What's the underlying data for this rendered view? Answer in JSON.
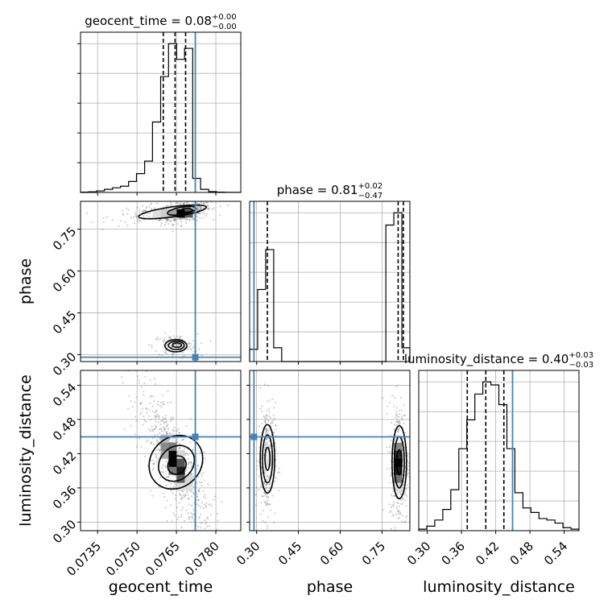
{
  "colors": {
    "truth": "#4682b4",
    "hist": "#000000",
    "grid": "#b0b0b0",
    "scatter": "#555555"
  },
  "chart_data": {
    "type": "corner",
    "parameters": [
      "geocent_time",
      "phase",
      "luminosity_distance"
    ],
    "titles": [
      {
        "name": "geocent_time",
        "prefix": "geocent_time = 0.08",
        "sup": "+0.00",
        "sub": "−0.00"
      },
      {
        "name": "phase",
        "prefix": "phase = 0.81",
        "sup": "+0.02",
        "sub": "−0.47"
      },
      {
        "name": "luminosity_distance",
        "prefix": "luminosity_distance = 0.40",
        "sup": "+0.03",
        "sub": "−0.03"
      }
    ],
    "ranges": {
      "geocent_time": [
        0.07285,
        0.07895
      ],
      "phase": [
        0.275,
        0.85
      ],
      "luminosity_distance": [
        0.285,
        0.566
      ]
    },
    "ticks": {
      "geocent_time": [
        "0.0735",
        "0.0750",
        "0.0765",
        "0.0780"
      ],
      "phase": [
        "0.30",
        "0.45",
        "0.60",
        "0.75"
      ],
      "luminosity_distance": [
        "0.30",
        "0.36",
        "0.42",
        "0.48",
        "0.54"
      ]
    },
    "truths": {
      "geocent_time": 0.07722,
      "phase": 0.2905,
      "luminosity_distance": 0.4495
    },
    "quantiles": {
      "geocent_time": [
        0.076,
        0.07645,
        0.07685
      ],
      "phase": [
        0.3386,
        0.8079,
        0.8266
      ],
      "luminosity_distance": [
        0.3701,
        0.4026,
        0.4343
      ]
    },
    "histograms": {
      "geocent_time": {
        "bin_edges": [
          0.07285,
          0.07315,
          0.07346,
          0.07376,
          0.07407,
          0.07437,
          0.07468,
          0.07498,
          0.07529,
          0.07559,
          0.0759,
          0.0762,
          0.07651,
          0.07681,
          0.07712,
          0.07742,
          0.07773,
          0.07803,
          0.07834,
          0.07864,
          0.07895
        ],
        "counts": [
          0.002,
          0.004,
          0.01,
          0.02,
          0.03,
          0.04,
          0.07,
          0.12,
          0.2,
          0.45,
          0.74,
          0.95,
          0.85,
          0.92,
          0.09,
          0.02,
          0.005,
          0.002,
          0.001,
          0.001
        ]
      },
      "phase": {
        "bin_edges": [
          0.275,
          0.3038,
          0.3325,
          0.3613,
          0.39,
          0.4188,
          0.4475,
          0.4763,
          0.505,
          0.5338,
          0.5625,
          0.5913,
          0.62,
          0.6488,
          0.6775,
          0.7063,
          0.735,
          0.7638,
          0.7925,
          0.8213,
          0.85
        ],
        "counts": [
          0.08,
          0.47,
          0.73,
          0.09,
          0.0,
          0.0,
          0.0,
          0.0,
          0.0,
          0.0,
          0.0,
          0.0,
          0.0,
          0.0,
          0.0,
          0.0,
          0.0,
          0.89,
          0.97,
          0.09
        ]
      },
      "luminosity_distance": {
        "bin_edges": [
          0.285,
          0.2991,
          0.3131,
          0.3272,
          0.3412,
          0.3553,
          0.3693,
          0.3834,
          0.3974,
          0.4115,
          0.4255,
          0.4396,
          0.4536,
          0.4677,
          0.4817,
          0.4958,
          0.5098,
          0.5239,
          0.5379,
          0.552,
          0.566
        ],
        "counts": [
          0.01,
          0.03,
          0.07,
          0.14,
          0.27,
          0.54,
          0.73,
          0.9,
          0.98,
          0.96,
          0.83,
          0.54,
          0.25,
          0.15,
          0.12,
          0.08,
          0.07,
          0.05,
          0.02,
          0.01
        ]
      }
    },
    "joint": [
      {
        "x": "geocent_time",
        "y": "phase",
        "modes": [
          {
            "cx": 0.07685,
            "cy": 0.814,
            "sx": 0.00028,
            "sy": 0.012,
            "weight": 0.55,
            "rho": 0.4
          },
          {
            "cx": 0.076,
            "cy": 0.808,
            "sx": 0.0006,
            "sy": 0.011,
            "weight": 0.25,
            "rho": 0.35
          },
          {
            "cx": 0.07645,
            "cy": 0.332,
            "sx": 0.00025,
            "sy": 0.012,
            "weight": 0.2,
            "rho": 0.0
          }
        ],
        "contours": [
          {
            "cx": 0.07648,
            "cy": 0.332,
            "rx": 0.00042,
            "ry": 0.022,
            "angle": 0
          },
          {
            "cx": 0.0765,
            "cy": 0.333,
            "rx": 0.0003,
            "ry": 0.015,
            "angle": 0
          },
          {
            "cx": 0.07652,
            "cy": 0.334,
            "rx": 0.00017,
            "ry": 0.008,
            "angle": 0
          },
          {
            "cx": 0.07635,
            "cy": 0.812,
            "rx": 0.0013,
            "ry": 0.018,
            "angle": -8
          },
          {
            "cx": 0.0767,
            "cy": 0.816,
            "rx": 0.00055,
            "ry": 0.013,
            "angle": -10
          },
          {
            "cx": 0.0769,
            "cy": 0.818,
            "rx": 0.00022,
            "ry": 0.007,
            "angle": 0
          }
        ]
      },
      {
        "x": "geocent_time",
        "y": "luminosity_distance",
        "modes": [
          {
            "cx": 0.07645,
            "cy": 0.405,
            "sx": 0.0004,
            "sy": 0.035,
            "weight": 1.0,
            "rho": -0.75
          }
        ],
        "contours": [
          {
            "cx": 0.07648,
            "cy": 0.405,
            "rx": 0.00095,
            "ry": 0.05,
            "angle": 45
          },
          {
            "cx": 0.0765,
            "cy": 0.403,
            "rx": 0.00062,
            "ry": 0.034,
            "angle": 45
          },
          {
            "cx": 0.07652,
            "cy": 0.4,
            "rx": 0.00033,
            "ry": 0.017,
            "angle": 45
          }
        ]
      },
      {
        "x": "phase",
        "y": "luminosity_distance",
        "modes": [
          {
            "cx": 0.337,
            "cy": 0.408,
            "sx": 0.009,
            "sy": 0.03,
            "weight": 0.42,
            "rho": 0.0
          },
          {
            "cx": 0.811,
            "cy": 0.403,
            "sx": 0.01,
            "sy": 0.032,
            "weight": 0.58,
            "rho": 0.0
          }
        ],
        "contours": [
          {
            "cx": 0.339,
            "cy": 0.411,
            "rx": 0.026,
            "ry": 0.06,
            "angle": 0
          },
          {
            "cx": 0.339,
            "cy": 0.411,
            "rx": 0.018,
            "ry": 0.042,
            "angle": 0
          },
          {
            "cx": 0.339,
            "cy": 0.411,
            "rx": 0.009,
            "ry": 0.02,
            "angle": 0
          },
          {
            "cx": 0.812,
            "cy": 0.405,
            "rx": 0.026,
            "ry": 0.064,
            "angle": 0
          },
          {
            "cx": 0.812,
            "cy": 0.405,
            "rx": 0.018,
            "ry": 0.045,
            "angle": 0
          },
          {
            "cx": 0.812,
            "cy": 0.405,
            "rx": 0.009,
            "ry": 0.022,
            "angle": 0
          }
        ]
      }
    ]
  }
}
